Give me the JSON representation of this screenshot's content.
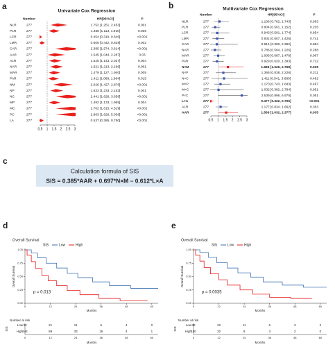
{
  "chart_data": [
    {
      "type": "forest",
      "panel_label": "a",
      "title": "Univariate Cox Regression",
      "headers": [
        "Number",
        "HR[95%CI]",
        "P"
      ],
      "categories": [
        "NLR",
        "PLR",
        "LCR",
        "LMR",
        "CAR",
        "AAR",
        "ALR",
        "NAR",
        "MAR",
        "PAR",
        "NM",
        "NP",
        "NC",
        "MP",
        "MC",
        "PC",
        "LA"
      ],
      "numbers": [
        277,
        277,
        277,
        277,
        277,
        277,
        277,
        277,
        277,
        277,
        277,
        277,
        277,
        277,
        277,
        277,
        277
      ],
      "values": [
        1.752,
        1.458,
        0.454,
        0.605,
        2.385,
        1.545,
        1.525,
        1.621,
        1.479,
        1.411,
        2.026,
        1.633,
        2.441,
        1.492,
        2.702,
        2.863,
        0.537
      ],
      "lower": [
        1.251,
        1.113,
        0.319,
        0.442,
        1.574,
        1.044,
        1.143,
        1.213,
        1.127,
        1.068,
        1.427,
        1.233,
        1.628,
        1.133,
        1.615,
        1.626,
        0.385
      ],
      "upper": [
        2.453,
        1.91,
        0.646,
        0.829,
        3.614,
        2.287,
        2.037,
        2.166,
        1.94,
        1.864,
        2.876,
        2.162,
        3.658,
        1.965,
        4.519,
        5.036,
        0.75
      ],
      "value_labels": [
        "1.752 [1.251, 2.453]",
        "1.458 [1.113, 1.910]",
        "0.454 [0.319, 0.646]",
        "0.605 [0.442, 0.829]",
        "2.385 [1.574, 3.614]",
        "1.545 [1.044, 2.287]",
        "1.525 [1.143, 2.037]",
        "1.621 [1.213, 2.166]",
        "1.479 [1.127, 1.940]",
        "1.411 [1.068, 1.864]",
        "2.026 [1.427, 2.876]",
        "1.633 [1.233, 2.162]",
        "2.441 [1.628, 3.658]",
        "1.492 [1.133, 1.965]",
        "2.702 [1.615, 4.519]",
        "2.863 [1.626, 5.036]",
        "0.537 [0.385, 0.750]"
      ],
      "p_values": [
        "0.001",
        "0.006",
        "<0.001",
        "0.002",
        "<0.001",
        "0.03",
        "0.004",
        "0.001",
        "0.005",
        "0.015",
        "<0.001",
        "0.001",
        "<0.001",
        "0.004",
        "<0.001",
        "<0.001",
        "<0.001"
      ],
      "marker": "diamond",
      "color": "#e8211c",
      "ref_line": 1,
      "xlim": [
        0.5,
        3
      ],
      "xticks": [
        0.5,
        1,
        1.5,
        2,
        2.5,
        3
      ]
    },
    {
      "type": "forest",
      "panel_label": "b",
      "title": "Multivariate Cox Regression",
      "headers": [
        "Number",
        "HR[95%CI]",
        "P"
      ],
      "categories": [
        "NLR",
        "PLR",
        "LCR",
        "LMR",
        "CAR",
        "NAR",
        "MAR",
        "PAR",
        "N×M",
        "N×P",
        "N×C",
        "M×P",
        "M×C",
        "P×C",
        "L×A",
        "ALR",
        "AAR"
      ],
      "numbers": [
        277,
        277,
        277,
        277,
        277,
        277,
        277,
        277,
        277,
        277,
        277,
        277,
        277,
        277,
        277,
        277,
        277
      ],
      "values": [
        1.106,
        0.804,
        0.943,
        0.931,
        0.914,
        0.786,
        1.006,
        0.929,
        1.685,
        1.366,
        1.411,
        1.17,
        1.032,
        2.639,
        0.477,
        1.177,
        1.566
      ],
      "lower": [
        0.702,
        0.561,
        0.501,
        0.607,
        0.36,
        0.504,
        0.687,
        0.62,
        1.026,
        0.838,
        0.541,
        0.743,
        0.382,
        0.996,
        0.322,
        0.834,
        1.032
      ],
      "upper": [
        1.743,
        1.152,
        1.774,
        1.426,
        2.362,
        1.226,
        1.478,
        1.393,
        2.768,
        2.226,
        3.68,
        1.843,
        2.784,
        6.978,
        0.706,
        1.662,
        2.377
      ],
      "value_labels": [
        "1.106 [0.702, 1.743]",
        "0.804 [0.561, 1.152]",
        "0.943 [0.501, 1.774]",
        "0.931 [0.607, 1.426]",
        "0.914 [0.360, 2.362]",
        "0.786 [0.504, 1.226]",
        "1.006 [0.687, 1.478]",
        "0.929 [0.620, 1.393]",
        "1.685 [1.026, 2.768]",
        "1.366 [0.838, 2.226]",
        "1.411 [0.541, 3.680]",
        "1.170 [0.743, 1.843]",
        "1.032 [0.382, 2.784]",
        "2.639 [0.996, 6.978]",
        "0.477 [0.322, 0.706]",
        "1.177 [0.834, 1.662]",
        "1.566 [1.032, 2.377]"
      ],
      "p_values": [
        "0.663",
        "0.235",
        "0.854",
        "0.741",
        "0.854",
        "0.288",
        "0.967",
        "0.722",
        "0.039",
        "0.211",
        "0.482",
        "0.497",
        "0.951",
        "0.051",
        "<0.001",
        "0.353",
        "0.035"
      ],
      "bold": [
        false,
        false,
        false,
        false,
        false,
        false,
        false,
        false,
        true,
        false,
        false,
        false,
        false,
        false,
        true,
        false,
        true
      ],
      "marker": "square",
      "color": "#3a56b5",
      "ci_color": "#555555",
      "highlight_color": "#e8211c",
      "ref_line": 1,
      "xlim": [
        0.5,
        3
      ],
      "xticks": [
        0.5,
        1,
        1.5,
        2,
        2.5,
        3
      ]
    },
    {
      "type": "km",
      "panel_label": "d",
      "title": "Overall Survival",
      "legend_title": "SIS",
      "ylabel": "Overall Survival",
      "xlabel": "Months",
      "p_text": "p = 0.013",
      "xlim": [
        0,
        63
      ],
      "ylim": [
        0,
        1
      ],
      "xticks": [
        0,
        12,
        24,
        36,
        48,
        60
      ],
      "yticks": [
        {
          "value": 0,
          "label": "0.00"
        },
        {
          "value": 0.25,
          "label": "0.25"
        },
        {
          "value": 0.5,
          "label": "0.50"
        },
        {
          "value": 0.75,
          "label": "0.75"
        },
        {
          "value": 1,
          "label": "1.00"
        }
      ],
      "risk_title": "Number at risk",
      "risk_ylabel": "SIS",
      "series": [
        {
          "name": "Low",
          "color": "#3a6fb0",
          "x": [
            0,
            3,
            3,
            6,
            6,
            10,
            10,
            15,
            15,
            20,
            20,
            25,
            25,
            32,
            32,
            40,
            40,
            50,
            50,
            63
          ],
          "values": [
            1,
            1,
            0.94,
            0.94,
            0.85,
            0.85,
            0.75,
            0.75,
            0.66,
            0.66,
            0.56,
            0.56,
            0.48,
            0.48,
            0.4,
            0.4,
            0.33,
            0.33,
            0.28,
            0.28
          ],
          "at_risk": [
            33,
            21,
            11,
            6,
            4,
            0
          ]
        },
        {
          "name": "High",
          "color": "#e41a1c",
          "x": [
            0,
            1,
            1,
            3,
            3,
            5,
            5,
            8,
            8,
            11,
            11,
            15,
            15,
            20,
            20,
            26,
            26,
            35,
            35,
            45,
            45,
            58
          ],
          "values": [
            1,
            1,
            0.9,
            0.9,
            0.78,
            0.78,
            0.65,
            0.65,
            0.52,
            0.52,
            0.42,
            0.42,
            0.33,
            0.33,
            0.24,
            0.24,
            0.16,
            0.16,
            0.09,
            0.09,
            0.05,
            0.05
          ],
          "at_risk": [
            244,
            89,
            33,
            15,
            4,
            1
          ]
        }
      ]
    },
    {
      "type": "km",
      "panel_label": "e",
      "title": "Overall Survival",
      "legend_title": "SIS",
      "ylabel": "Overall Survival",
      "xlabel": "Months",
      "p_text": "p = 0.0035",
      "xlim": [
        0,
        63
      ],
      "ylim": [
        0,
        1
      ],
      "xticks": [
        0,
        12,
        24,
        36,
        48,
        60
      ],
      "yticks": [
        {
          "value": 0,
          "label": "0.00"
        },
        {
          "value": 0.25,
          "label": "0.25"
        },
        {
          "value": 0.5,
          "label": "0.50"
        },
        {
          "value": 0.75,
          "label": "0.75"
        },
        {
          "value": 1,
          "label": "1.00"
        }
      ],
      "risk_title": "Number at risk",
      "risk_ylabel": "SIS",
      "series": [
        {
          "name": "Low",
          "color": "#3a6fb0",
          "x": [
            0,
            3,
            3,
            7,
            7,
            11,
            11,
            16,
            16,
            21,
            21,
            27,
            27,
            33,
            33,
            42,
            42,
            52,
            52,
            63
          ],
          "values": [
            1,
            1,
            0.95,
            0.95,
            0.86,
            0.86,
            0.76,
            0.76,
            0.66,
            0.66,
            0.57,
            0.57,
            0.49,
            0.49,
            0.4,
            0.4,
            0.34,
            0.34,
            0.3,
            0.3
          ],
          "at_risk": [
            38,
            22,
            11,
            6,
            3,
            2
          ]
        },
        {
          "name": "High",
          "color": "#e41a1c",
          "x": [
            0,
            1,
            1,
            3,
            3,
            5,
            5,
            8,
            8,
            12,
            12,
            16,
            16,
            22,
            22,
            28,
            28,
            36,
            36,
            46,
            46,
            56
          ],
          "values": [
            1,
            1,
            0.9,
            0.9,
            0.79,
            0.79,
            0.67,
            0.67,
            0.55,
            0.55,
            0.44,
            0.44,
            0.34,
            0.34,
            0.25,
            0.25,
            0.17,
            0.17,
            0.11,
            0.11,
            0.09,
            0.09
          ],
          "at_risk": [
            150,
            32,
            9,
            3,
            2,
            0
          ]
        }
      ]
    }
  ],
  "formula_box": {
    "panel_label": "c",
    "title": "Calculation formula of SIS",
    "formula": "SIS = 0.385*AAR + 0.697*N×M – 0.612*L×A"
  }
}
